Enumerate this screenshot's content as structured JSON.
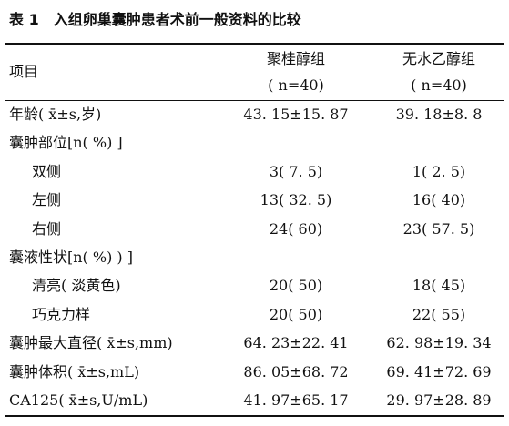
{
  "title": "表 1　入组卵巢囊肿患者术前一般资料的比较",
  "header": {
    "item": "项目",
    "groups": [
      {
        "name": "聚桂醇组",
        "n": "( n=40)"
      },
      {
        "name": "无水乙醇组",
        "n": "( n=40)"
      }
    ]
  },
  "rows": [
    {
      "label": "年龄( x̄±s,岁)",
      "values": [
        "43. 15±15. 87",
        "39. 18±8. 8"
      ]
    },
    {
      "label": "囊肿部位[n( %) ]",
      "items": [
        {
          "label": "双侧",
          "values": [
            "3( 7. 5)",
            "1( 2. 5)"
          ]
        },
        {
          "label": "左侧",
          "values": [
            "13( 32. 5)",
            "16( 40)"
          ]
        },
        {
          "label": "右侧",
          "values": [
            "24( 60)",
            "23( 57. 5)"
          ]
        }
      ]
    },
    {
      "label": "囊液性状[n( %) ) ]",
      "items": [
        {
          "label": "清亮( 淡黄色)",
          "values": [
            "20( 50)",
            "18( 45)"
          ]
        },
        {
          "label": "巧克力样",
          "values": [
            "20( 50)",
            "22( 55)"
          ]
        }
      ]
    },
    {
      "label": "囊肿最大直径( x̄±s,mm)",
      "values": [
        "64. 23±22. 41",
        "62. 98±19. 34"
      ]
    },
    {
      "label": "囊肿体积( x̄±s,mL)",
      "values": [
        "86. 05±68. 72",
        "69. 41±72. 69"
      ]
    },
    {
      "label": "CA125( x̄±s,U/mL)",
      "values": [
        "41. 97±65. 17",
        "29. 97±28. 89"
      ]
    }
  ]
}
